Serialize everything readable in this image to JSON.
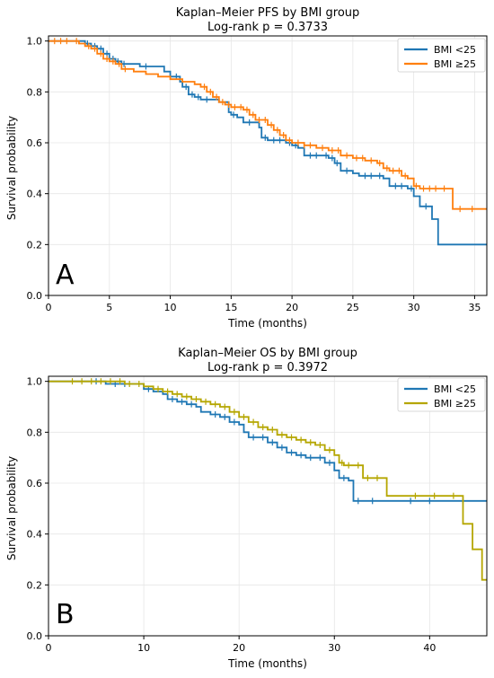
{
  "chart_data": [
    {
      "type": "line",
      "panel_letter": "A",
      "title": "Kaplan–Meier PFS by BMI group",
      "subtitle": "Log-rank p = 0.3733",
      "xlabel": "Time (months)",
      "ylabel": "Survival probability",
      "xlim": [
        0,
        36
      ],
      "ylim": [
        0,
        1.02
      ],
      "xticks": [
        0,
        5,
        10,
        15,
        20,
        25,
        30,
        35
      ],
      "yticks": [
        0.0,
        0.2,
        0.4,
        0.6,
        0.8,
        1.0
      ],
      "grid": true,
      "legend_position": "top-right",
      "series": [
        {
          "name": "BMI <25",
          "color": "#1f77b4",
          "step_points": [
            [
              0,
              1.0
            ],
            [
              2.5,
              1.0
            ],
            [
              3.0,
              0.99
            ],
            [
              3.5,
              0.98
            ],
            [
              4.0,
              0.97
            ],
            [
              4.5,
              0.95
            ],
            [
              5.0,
              0.93
            ],
            [
              5.5,
              0.92
            ],
            [
              6.0,
              0.91
            ],
            [
              7.0,
              0.91
            ],
            [
              7.5,
              0.9
            ],
            [
              9.0,
              0.9
            ],
            [
              9.5,
              0.88
            ],
            [
              10.0,
              0.86
            ],
            [
              10.8,
              0.84
            ],
            [
              11.0,
              0.82
            ],
            [
              11.5,
              0.79
            ],
            [
              12.0,
              0.78
            ],
            [
              12.5,
              0.77
            ],
            [
              14.0,
              0.76
            ],
            [
              14.8,
              0.72
            ],
            [
              15.0,
              0.71
            ],
            [
              15.5,
              0.7
            ],
            [
              16.0,
              0.68
            ],
            [
              17.0,
              0.68
            ],
            [
              17.3,
              0.66
            ],
            [
              17.5,
              0.62
            ],
            [
              18.0,
              0.61
            ],
            [
              19.5,
              0.6
            ],
            [
              20.0,
              0.59
            ],
            [
              20.5,
              0.58
            ],
            [
              21.0,
              0.55
            ],
            [
              23.0,
              0.54
            ],
            [
              23.5,
              0.52
            ],
            [
              24.0,
              0.49
            ],
            [
              25.0,
              0.48
            ],
            [
              25.5,
              0.47
            ],
            [
              27.5,
              0.46
            ],
            [
              28.0,
              0.43
            ],
            [
              29.5,
              0.42
            ],
            [
              30.0,
              0.39
            ],
            [
              30.5,
              0.35
            ],
            [
              31.5,
              0.3
            ],
            [
              32.0,
              0.2
            ],
            [
              36.0,
              0.2
            ]
          ],
          "censor_times": [
            3.2,
            3.8,
            4.3,
            4.8,
            5.3,
            5.7,
            6.2,
            8.0,
            10.5,
            11.3,
            11.8,
            12.3,
            13.0,
            15.2,
            16.5,
            17.8,
            18.5,
            19.0,
            19.8,
            20.3,
            21.5,
            22.0,
            22.8,
            23.3,
            23.7,
            24.5,
            26.0,
            26.5,
            27.2,
            28.5,
            29.0,
            29.8,
            31.0
          ]
        },
        {
          "name": "BMI ≥25",
          "color": "#ff7f0e",
          "step_points": [
            [
              0,
              1.0
            ],
            [
              2.0,
              1.0
            ],
            [
              2.5,
              0.99
            ],
            [
              3.0,
              0.98
            ],
            [
              3.5,
              0.97
            ],
            [
              4.0,
              0.95
            ],
            [
              4.5,
              0.93
            ],
            [
              5.0,
              0.92
            ],
            [
              5.5,
              0.91
            ],
            [
              6.0,
              0.89
            ],
            [
              7.0,
              0.88
            ],
            [
              8.0,
              0.87
            ],
            [
              9.0,
              0.86
            ],
            [
              10.0,
              0.85
            ],
            [
              11.0,
              0.84
            ],
            [
              12.0,
              0.83
            ],
            [
              12.5,
              0.82
            ],
            [
              13.0,
              0.8
            ],
            [
              13.5,
              0.78
            ],
            [
              14.0,
              0.76
            ],
            [
              14.5,
              0.75
            ],
            [
              15.0,
              0.74
            ],
            [
              16.0,
              0.73
            ],
            [
              16.5,
              0.71
            ],
            [
              17.0,
              0.69
            ],
            [
              18.0,
              0.67
            ],
            [
              18.5,
              0.65
            ],
            [
              19.0,
              0.63
            ],
            [
              19.5,
              0.61
            ],
            [
              20.0,
              0.6
            ],
            [
              21.0,
              0.59
            ],
            [
              22.0,
              0.58
            ],
            [
              23.0,
              0.57
            ],
            [
              24.0,
              0.55
            ],
            [
              25.0,
              0.54
            ],
            [
              26.0,
              0.53
            ],
            [
              27.0,
              0.52
            ],
            [
              27.5,
              0.5
            ],
            [
              28.0,
              0.49
            ],
            [
              29.0,
              0.47
            ],
            [
              29.5,
              0.46
            ],
            [
              30.0,
              0.43
            ],
            [
              30.5,
              0.42
            ],
            [
              31.5,
              0.42
            ],
            [
              33.0,
              0.42
            ],
            [
              33.2,
              0.34
            ],
            [
              34.0,
              0.34
            ],
            [
              36.0,
              0.34
            ]
          ],
          "censor_times": [
            0.5,
            1.0,
            1.5,
            2.3,
            3.3,
            3.8,
            4.3,
            4.8,
            5.3,
            5.8,
            6.3,
            12.8,
            13.3,
            13.8,
            14.3,
            14.8,
            15.3,
            15.8,
            16.3,
            16.8,
            17.3,
            17.8,
            18.3,
            18.8,
            19.3,
            19.8,
            20.5,
            21.0,
            21.5,
            22.5,
            23.3,
            23.8,
            24.5,
            25.3,
            25.8,
            26.5,
            27.2,
            27.8,
            28.3,
            28.8,
            29.3,
            30.2,
            30.8,
            31.3,
            31.8,
            32.5,
            33.8,
            34.8
          ]
        }
      ]
    },
    {
      "type": "line",
      "panel_letter": "B",
      "title": "Kaplan–Meier OS by BMI group",
      "subtitle": "Log-rank p = 0.3972",
      "xlabel": "Time (months)",
      "ylabel": "Survival probability",
      "xlim": [
        0,
        46
      ],
      "ylim": [
        0,
        1.02
      ],
      "xticks": [
        0,
        10,
        20,
        30,
        40
      ],
      "yticks": [
        0.0,
        0.2,
        0.4,
        0.6,
        0.8,
        1.0
      ],
      "grid": true,
      "legend_position": "top-right",
      "series": [
        {
          "name": "BMI <25",
          "color": "#1f77b4",
          "step_points": [
            [
              0,
              1.0
            ],
            [
              5.5,
              1.0
            ],
            [
              6.0,
              0.99
            ],
            [
              9.0,
              0.99
            ],
            [
              10.0,
              0.97
            ],
            [
              11.0,
              0.96
            ],
            [
              12.0,
              0.95
            ],
            [
              12.5,
              0.93
            ],
            [
              13.5,
              0.92
            ],
            [
              14.5,
              0.91
            ],
            [
              15.5,
              0.9
            ],
            [
              16.0,
              0.88
            ],
            [
              17.0,
              0.87
            ],
            [
              18.0,
              0.86
            ],
            [
              19.0,
              0.84
            ],
            [
              20.0,
              0.83
            ],
            [
              20.5,
              0.8
            ],
            [
              21.0,
              0.78
            ],
            [
              22.0,
              0.78
            ],
            [
              23.0,
              0.76
            ],
            [
              24.0,
              0.74
            ],
            [
              25.0,
              0.72
            ],
            [
              26.0,
              0.71
            ],
            [
              27.0,
              0.7
            ],
            [
              28.0,
              0.7
            ],
            [
              29.0,
              0.68
            ],
            [
              30.0,
              0.65
            ],
            [
              30.5,
              0.62
            ],
            [
              31.5,
              0.61
            ],
            [
              32.0,
              0.53
            ],
            [
              46.0,
              0.53
            ]
          ],
          "censor_times": [
            5.0,
            7.0,
            8.0,
            10.5,
            13.0,
            14.0,
            15.0,
            17.5,
            18.5,
            19.5,
            21.5,
            22.5,
            23.5,
            24.5,
            25.5,
            26.5,
            27.5,
            28.5,
            29.5,
            31.0,
            32.5,
            34.0,
            38.0,
            40.0,
            43.5
          ]
        },
        {
          "name": "BMI ≥25",
          "color": "#b5a600",
          "step_points": [
            [
              0,
              1.0
            ],
            [
              7.0,
              1.0
            ],
            [
              8.0,
              0.99
            ],
            [
              10.0,
              0.98
            ],
            [
              11.0,
              0.97
            ],
            [
              12.0,
              0.96
            ],
            [
              13.0,
              0.95
            ],
            [
              14.0,
              0.94
            ],
            [
              15.0,
              0.93
            ],
            [
              16.0,
              0.92
            ],
            [
              17.0,
              0.91
            ],
            [
              18.0,
              0.9
            ],
            [
              19.0,
              0.88
            ],
            [
              20.0,
              0.86
            ],
            [
              21.0,
              0.84
            ],
            [
              22.0,
              0.82
            ],
            [
              23.0,
              0.81
            ],
            [
              24.0,
              0.79
            ],
            [
              25.0,
              0.78
            ],
            [
              26.0,
              0.77
            ],
            [
              27.0,
              0.76
            ],
            [
              28.0,
              0.75
            ],
            [
              29.0,
              0.73
            ],
            [
              30.0,
              0.71
            ],
            [
              30.5,
              0.68
            ],
            [
              31.0,
              0.67
            ],
            [
              32.0,
              0.67
            ],
            [
              33.0,
              0.62
            ],
            [
              35.0,
              0.62
            ],
            [
              35.5,
              0.55
            ],
            [
              43.0,
              0.55
            ],
            [
              43.5,
              0.44
            ],
            [
              44.5,
              0.34
            ],
            [
              45.5,
              0.22
            ],
            [
              46.0,
              0.22
            ]
          ],
          "censor_times": [
            2.5,
            3.5,
            4.5,
            5.5,
            6.5,
            7.5,
            8.5,
            9.5,
            11.5,
            12.5,
            13.5,
            14.5,
            15.5,
            16.5,
            17.5,
            18.5,
            19.5,
            20.5,
            21.5,
            22.5,
            23.5,
            24.5,
            25.5,
            26.5,
            27.5,
            28.5,
            29.5,
            30.8,
            31.5,
            32.5,
            33.5,
            34.5,
            38.5,
            40.5,
            42.5
          ]
        }
      ]
    }
  ]
}
